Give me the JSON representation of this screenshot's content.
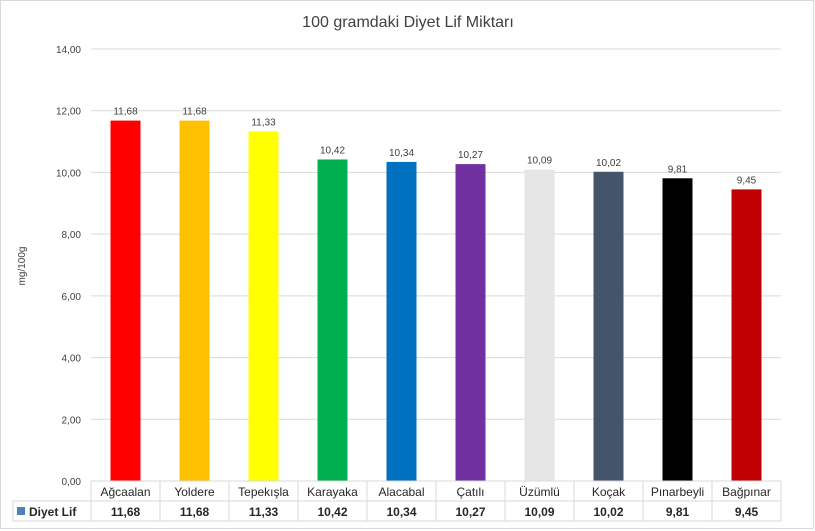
{
  "chart_data": {
    "type": "bar",
    "title": "100 gramdaki Diyet Lif Miktarı",
    "ylabel": "mg/100g",
    "xlabel": "",
    "ylim": [
      0,
      14
    ],
    "ytick_step": 2,
    "yticks": [
      "0,00",
      "2,00",
      "4,00",
      "6,00",
      "8,00",
      "10,00",
      "12,00",
      "14,00"
    ],
    "grid": true,
    "categories": [
      "Ağcaalan",
      "Yoldere",
      "Tepekışla",
      "Karayaka",
      "Alacabal",
      "Çatılı",
      "Üzümlü",
      "Koçak",
      "Pınarbeyli",
      "Bağpınar"
    ],
    "series": [
      {
        "name": "Diyet Lif",
        "values": [
          11.68,
          11.68,
          11.33,
          10.42,
          10.34,
          10.27,
          10.09,
          10.02,
          9.81,
          9.45
        ],
        "labels": [
          "11,68",
          "11,68",
          "11,33",
          "10,42",
          "10,34",
          "10,27",
          "10,09",
          "10,02",
          "9,81",
          "9,45"
        ],
        "colors": [
          "#ff0000",
          "#ffc000",
          "#ffff00",
          "#00b050",
          "#0070c0",
          "#7030a0",
          "#e7e6e6",
          "#44546a",
          "#000000",
          "#c00000"
        ]
      }
    ],
    "legend": "data-table",
    "legend_color": "#4f81bd"
  }
}
